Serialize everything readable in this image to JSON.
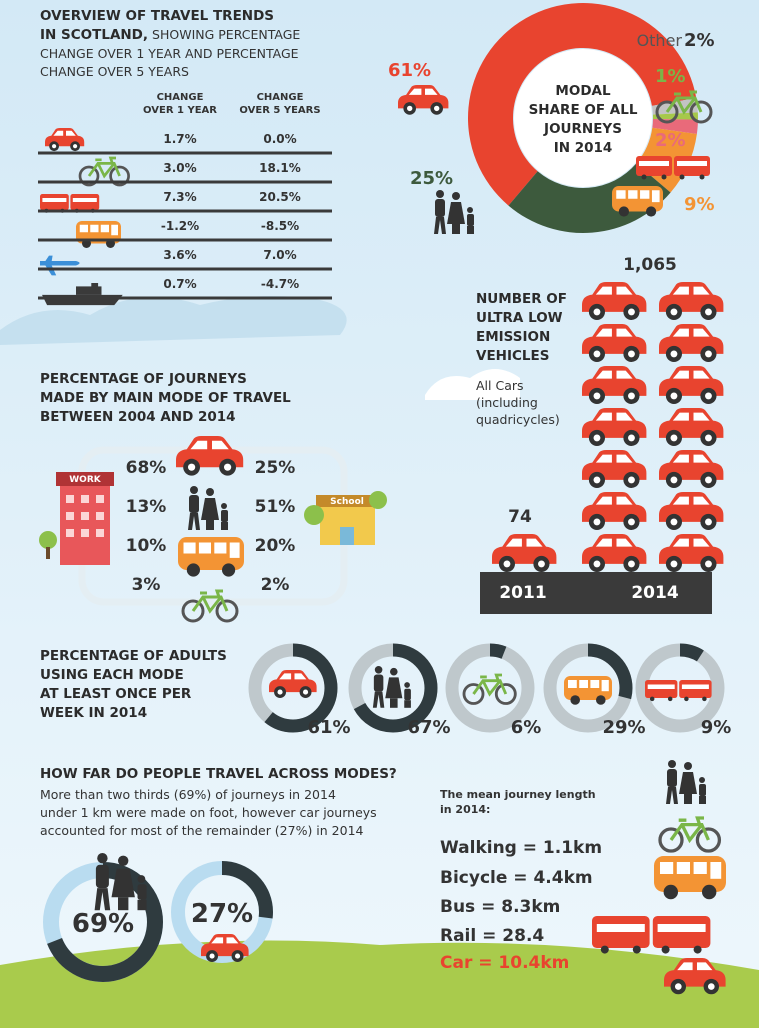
{
  "overview": {
    "title": [
      "OVERVIEW OF TRAVEL TRENDS",
      "IN SCOTLAND,"
    ],
    "subtitle": [
      "SHOWING PERCENTAGE",
      "CHANGE OVER 1 YEAR AND PERCENTAGE",
      "CHANGE OVER 5 YEARS"
    ],
    "columns": [
      [
        "CHANGE",
        "OVER 1 YEAR"
      ],
      [
        "CHANGE",
        "OVER 5 YEARS"
      ]
    ],
    "rows": [
      [
        "1.7%",
        "0.0%"
      ],
      [
        "3.0%",
        "18.1%"
      ],
      [
        "7.3%",
        "20.5%"
      ],
      [
        "-1.2%",
        "-8.5%"
      ],
      [
        "3.6%",
        "7.0%"
      ],
      [
        "0.7%",
        "-4.7%"
      ]
    ]
  },
  "modal_share": {
    "type": "pie",
    "title": [
      "MODAL",
      "SHARE OF ALL",
      "JOURNEYS",
      "IN 2014"
    ],
    "values": [
      61,
      2,
      1,
      2,
      9,
      25
    ],
    "value_labels": [
      "61%",
      "2%",
      "1%",
      "2%",
      "9%",
      "25%"
    ],
    "colors": [
      "#e8442f",
      "#c3c3c3",
      "#a6c84a",
      "#e96a7a",
      "#f39434",
      "#3d5a3d"
    ],
    "other_label": "Other"
  },
  "ulev": {
    "type": "pictogram",
    "title": [
      "NUMBER OF",
      "ULTRA LOW",
      "EMISSION",
      "VEHICLES"
    ],
    "note": [
      "All Cars",
      "(including",
      "quadricycles)"
    ],
    "categories": [
      "2011",
      "2014"
    ],
    "values": [
      74,
      1065
    ],
    "value_labels": [
      "74",
      "1,065"
    ]
  },
  "journeys": {
    "title": [
      "PERCENTAGE OF JOURNEYS",
      "MADE BY MAIN MODE OF TRAVEL",
      "BETWEEN 2004 AND 2014"
    ],
    "work_label": "WORK",
    "school_label": "School",
    "rows": [
      [
        "68%",
        "25%"
      ],
      [
        "13%",
        "51%"
      ],
      [
        "10%",
        "20%"
      ],
      [
        "3%",
        "2%"
      ]
    ]
  },
  "adults": {
    "type": "ring",
    "title": [
      "PERCENTAGE OF ADULTS",
      "USING EACH MODE",
      "AT LEAST ONCE PER",
      "WEEK IN 2014"
    ],
    "values": [
      61,
      67,
      6,
      29,
      9
    ],
    "value_labels": [
      "61%",
      "67%",
      "6%",
      "29%",
      "9%"
    ]
  },
  "distance": {
    "type": "ring",
    "title": "HOW FAR DO PEOPLE TRAVEL ACROSS MODES?",
    "text": [
      "More than two thirds (69%) of journeys in 2014",
      "under 1 km were made on foot, however car journeys",
      "accounted for most of the remainder (27%) in 2014"
    ],
    "values": [
      69,
      27
    ],
    "value_labels": [
      "69%",
      "27%"
    ],
    "mean_title": [
      "The mean journey length",
      "in 2014:"
    ],
    "means": [
      "Walking = 1.1km",
      "Bicycle = 4.4km",
      "Bus = 8.3km",
      "Rail = 28.4",
      "Car = 10.4km"
    ]
  }
}
